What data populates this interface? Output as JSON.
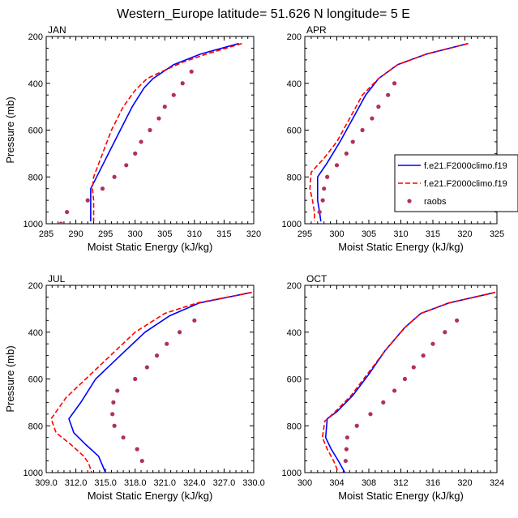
{
  "figure": {
    "title": "Western_Europe  latitude= 51.626 N longitude= 5 E",
    "ylabel": "Pressure (mb)",
    "xlabel": "Moist Static Energy (kJ/kg)"
  },
  "legend": {
    "placement": "right-middle (overlapping APR panel)",
    "entries": [
      {
        "label": "f.e21.F2000climo.f19",
        "color": "#0000ff",
        "style": "solid"
      },
      {
        "label": "f.e21.F2000climo.f19",
        "color": "#ff0000",
        "style": "dashed"
      },
      {
        "label": "raobs",
        "color": "#b03060",
        "style": "markers"
      }
    ]
  },
  "chart_data": [
    {
      "type": "line",
      "panel_title": "JAN",
      "xlabel": "Moist Static Energy (kJ/kg)",
      "ylabel": "Pressure (mb)",
      "xlim": [
        285,
        320
      ],
      "ylim": [
        1000,
        200
      ],
      "xticks": [
        285,
        290,
        295,
        300,
        305,
        310,
        315,
        320
      ],
      "yticks": [
        200,
        400,
        600,
        800,
        1000
      ],
      "y_inverted": true,
      "grid": false,
      "series": [
        {
          "name": "f.e21.F2000climo.f19",
          "color": "#0000ff",
          "style": "solid",
          "points": [
            [
              317.5,
              230
            ],
            [
              311,
              275
            ],
            [
              306.5,
              320
            ],
            [
              303,
              380
            ],
            [
              301.5,
              420
            ],
            [
              299.5,
              500
            ],
            [
              297.5,
              600
            ],
            [
              295.5,
              700
            ],
            [
              293.5,
              800
            ],
            [
              292.5,
              850
            ],
            [
              292.5,
              900
            ],
            [
              292.5,
              950
            ],
            [
              292.5,
              990
            ]
          ]
        },
        {
          "name": "f.e21.F2000climo.f19",
          "color": "#ff0000",
          "style": "dashed",
          "points": [
            [
              318,
              230
            ],
            [
              312,
              275
            ],
            [
              308,
              310
            ],
            [
              304.5,
              350
            ],
            [
              302,
              380
            ],
            [
              300,
              430
            ],
            [
              298,
              500
            ],
            [
              296,
              600
            ],
            [
              294.5,
              700
            ],
            [
              293,
              800
            ],
            [
              292.8,
              850
            ],
            [
              293,
              900
            ],
            [
              293,
              950
            ],
            [
              293,
              990
            ]
          ]
        },
        {
          "name": "raobs",
          "color": "#b03060",
          "style": "markers",
          "points": [
            [
              309.5,
              350
            ],
            [
              308,
              400
            ],
            [
              306.5,
              450
            ],
            [
              305,
              500
            ],
            [
              304,
              550
            ],
            [
              302.5,
              600
            ],
            [
              301,
              650
            ],
            [
              300,
              700
            ],
            [
              298.5,
              750
            ],
            [
              296.5,
              800
            ],
            [
              294.5,
              850
            ],
            [
              292,
              900
            ],
            [
              288.5,
              950
            ],
            [
              287.5,
              1000
            ]
          ]
        }
      ]
    },
    {
      "type": "line",
      "panel_title": "APR",
      "xlabel": "Moist Static Energy (kJ/kg)",
      "ylabel": "Pressure (mb)",
      "xlim": [
        295,
        325
      ],
      "ylim": [
        1000,
        200
      ],
      "xticks": [
        295,
        300,
        305,
        310,
        315,
        320,
        325
      ],
      "yticks": [
        200,
        400,
        600,
        800,
        1000
      ],
      "y_inverted": true,
      "grid": false,
      "series": [
        {
          "name": "f.e21.F2000climo.f19",
          "color": "#0000ff",
          "style": "solid",
          "points": [
            [
              320.5,
              230
            ],
            [
              314,
              275
            ],
            [
              309.5,
              320
            ],
            [
              306.5,
              380
            ],
            [
              304.5,
              450
            ],
            [
              302.5,
              550
            ],
            [
              300.5,
              650
            ],
            [
              298.5,
              740
            ],
            [
              297,
              800
            ],
            [
              297,
              850
            ],
            [
              297,
              900
            ],
            [
              297.3,
              950
            ],
            [
              297.5,
              990
            ]
          ]
        },
        {
          "name": "f.e21.F2000climo.f19",
          "color": "#ff0000",
          "style": "dashed",
          "points": [
            [
              320.5,
              230
            ],
            [
              314,
              275
            ],
            [
              309.5,
              320
            ],
            [
              306.5,
              380
            ],
            [
              304,
              450
            ],
            [
              302,
              550
            ],
            [
              300,
              650
            ],
            [
              298,
              720
            ],
            [
              296,
              780
            ],
            [
              295.8,
              850
            ],
            [
              296.2,
              900
            ],
            [
              296.5,
              950
            ],
            [
              296.5,
              990
            ]
          ]
        },
        {
          "name": "raobs",
          "color": "#b03060",
          "style": "markers",
          "points": [
            [
              309,
              400
            ],
            [
              308,
              450
            ],
            [
              306.5,
              500
            ],
            [
              305.5,
              550
            ],
            [
              304,
              600
            ],
            [
              302.5,
              650
            ],
            [
              301.5,
              700
            ],
            [
              300,
              750
            ],
            [
              298.5,
              800
            ],
            [
              298,
              850
            ],
            [
              297.8,
              900
            ],
            [
              297.3,
              950
            ]
          ]
        }
      ]
    },
    {
      "type": "line",
      "panel_title": "JUL",
      "xlabel": "Moist Static Energy (kJ/kg)",
      "ylabel": "Pressure (mb)",
      "xlim": [
        309.0,
        330.0
      ],
      "ylim": [
        1000,
        200
      ],
      "xticks": [
        "309.0",
        "312.0",
        "315.0",
        "318.0",
        "321.0",
        "324.0",
        "327.0",
        "330.0"
      ],
      "yticks": [
        200,
        400,
        600,
        800,
        1000
      ],
      "y_inverted": true,
      "grid": false,
      "series": [
        {
          "name": "f.e21.F2000climo.f19",
          "color": "#0000ff",
          "style": "solid",
          "points": [
            [
              329.8,
              230
            ],
            [
              324.5,
              275
            ],
            [
              321.5,
              330
            ],
            [
              319,
              400
            ],
            [
              316.5,
              500
            ],
            [
              314,
              600
            ],
            [
              312.5,
              700
            ],
            [
              311.3,
              770
            ],
            [
              311.8,
              830
            ],
            [
              313,
              880
            ],
            [
              314.3,
              930
            ],
            [
              314.7,
              970
            ],
            [
              315,
              1000
            ]
          ]
        },
        {
          "name": "f.e21.F2000climo.f19",
          "color": "#ff0000",
          "style": "dashed",
          "points": [
            [
              329.8,
              230
            ],
            [
              324.3,
              275
            ],
            [
              321,
              320
            ],
            [
              318,
              400
            ],
            [
              315.5,
              500
            ],
            [
              313,
              600
            ],
            [
              311,
              680
            ],
            [
              309.5,
              770
            ],
            [
              310,
              830
            ],
            [
              311.5,
              880
            ],
            [
              312.8,
              930
            ],
            [
              313.3,
              960
            ],
            [
              313.6,
              1000
            ]
          ]
        },
        {
          "name": "raobs",
          "color": "#b03060",
          "style": "markers",
          "points": [
            [
              324,
              350
            ],
            [
              322.5,
              400
            ],
            [
              321.2,
              450
            ],
            [
              320.2,
              500
            ],
            [
              319.2,
              550
            ],
            [
              318,
              600
            ],
            [
              316.2,
              650
            ],
            [
              315.8,
              700
            ],
            [
              315.7,
              750
            ],
            [
              315.9,
              800
            ],
            [
              316.8,
              850
            ],
            [
              318.2,
              900
            ],
            [
              318.7,
              950
            ]
          ]
        }
      ]
    },
    {
      "type": "line",
      "panel_title": "OCT",
      "xlabel": "Moist Static Energy (kJ/kg)",
      "ylabel": "Pressure (mb)",
      "xlim": [
        300,
        324
      ],
      "ylim": [
        1000,
        200
      ],
      "xticks": [
        300,
        304,
        308,
        312,
        316,
        320,
        324
      ],
      "yticks": [
        200,
        400,
        600,
        800,
        1000
      ],
      "y_inverted": true,
      "grid": false,
      "series": [
        {
          "name": "f.e21.F2000climo.f19",
          "color": "#0000ff",
          "style": "solid",
          "points": [
            [
              323.8,
              230
            ],
            [
              318,
              275
            ],
            [
              314.5,
              320
            ],
            [
              312.5,
              380
            ],
            [
              310,
              480
            ],
            [
              308,
              580
            ],
            [
              306,
              670
            ],
            [
              304,
              740
            ],
            [
              302.8,
              770
            ],
            [
              302.6,
              850
            ],
            [
              303.3,
              900
            ],
            [
              304.2,
              950
            ],
            [
              305,
              1000
            ]
          ]
        },
        {
          "name": "f.e21.F2000climo.f19",
          "color": "#ff0000",
          "style": "dashed",
          "points": [
            [
              323.8,
              230
            ],
            [
              318,
              275
            ],
            [
              314.5,
              320
            ],
            [
              312.5,
              380
            ],
            [
              310,
              480
            ],
            [
              307.8,
              580
            ],
            [
              305.8,
              670
            ],
            [
              303.8,
              740
            ],
            [
              302.5,
              780
            ],
            [
              302.2,
              850
            ],
            [
              302.8,
              900
            ],
            [
              303.6,
              950
            ],
            [
              304.2,
              1000
            ]
          ]
        },
        {
          "name": "raobs",
          "color": "#b03060",
          "style": "markers",
          "points": [
            [
              319,
              350
            ],
            [
              317.5,
              400
            ],
            [
              316,
              450
            ],
            [
              314.8,
              500
            ],
            [
              313.6,
              550
            ],
            [
              312.5,
              600
            ],
            [
              311.2,
              650
            ],
            [
              309.8,
              700
            ],
            [
              308.2,
              750
            ],
            [
              306.5,
              800
            ],
            [
              305.3,
              850
            ],
            [
              305.2,
              900
            ],
            [
              305.1,
              950
            ]
          ]
        }
      ]
    }
  ]
}
